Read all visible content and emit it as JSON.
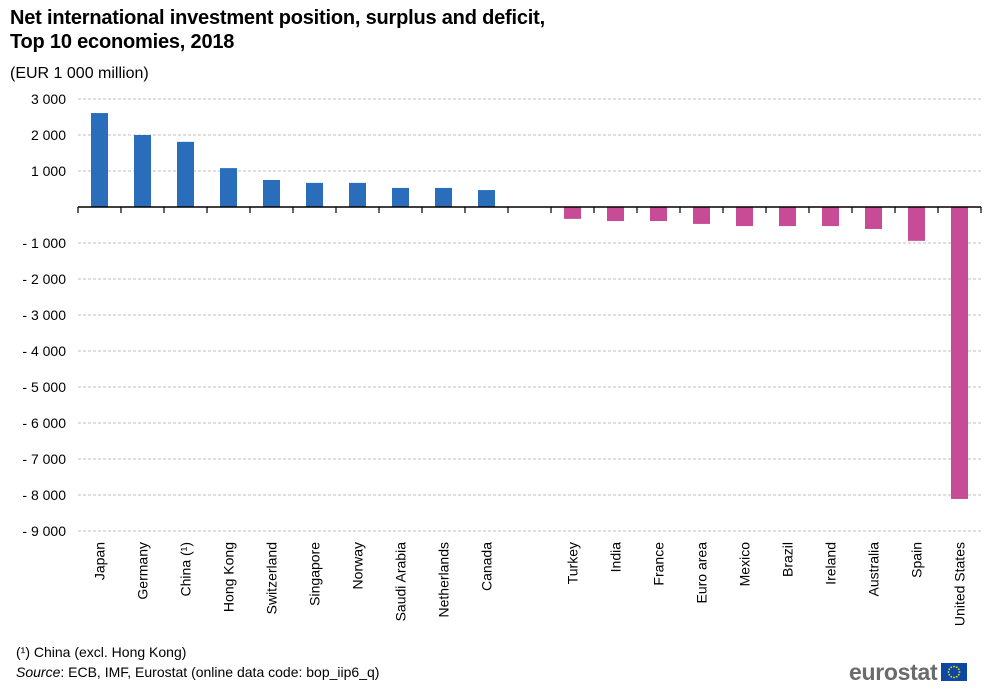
{
  "title_line1": "Net international investment position, surplus and deficit,",
  "title_line2": "Top 10 economies, 2018",
  "subtitle": "(EUR 1 000 million)",
  "footnote": "(¹) China (excl. Hong Kong)",
  "source_label": "Source",
  "source_text": ": ECB, IMF, Eurostat (online data code: bop_iip6_q)",
  "logo_text": "eurostat",
  "colors": {
    "surplus": "#2a6ebb",
    "deficit": "#c84b96",
    "grid": "#bfbfbf",
    "axis": "#000000"
  },
  "chart_data": {
    "type": "bar",
    "title": "Net international investment position, surplus and deficit, Top 10 economies, 2018",
    "subtitle": "(EUR 1 000 million)",
    "xlabel": "",
    "ylabel": "",
    "ylim": [
      -9000,
      3000
    ],
    "yticks": [
      3000,
      2000,
      1000,
      0,
      -1000,
      -2000,
      -3000,
      -4000,
      -5000,
      -6000,
      -7000,
      -8000,
      -9000
    ],
    "ytick_labels": [
      "3 000",
      "2 000",
      "1 000",
      "",
      "- 1 000",
      "- 2 000",
      "- 3 000",
      "- 4 000",
      "- 5 000",
      "- 6 000",
      "- 7 000",
      "- 8 000",
      "- 9 000"
    ],
    "grid": true,
    "legend": "none",
    "categories": [
      "Japan",
      "Germany",
      "China (¹)",
      "Hong Kong",
      "Switzerland",
      "Singapore",
      "Norway",
      "Saudi Arabia",
      "Netherlands",
      "Canada",
      "",
      "Turkey",
      "India",
      "France",
      "Euro area",
      "Mexico",
      "Brazil",
      "Ireland",
      "Australia",
      "Spain",
      "United States"
    ],
    "series": [
      {
        "name": "Surplus",
        "color": "#2a6ebb",
        "values": [
          2610,
          2000,
          1810,
          1080,
          750,
          670,
          670,
          530,
          530,
          470,
          null,
          null,
          null,
          null,
          null,
          null,
          null,
          null,
          null,
          null,
          null
        ]
      },
      {
        "name": "Deficit",
        "color": "#c84b96",
        "values": [
          null,
          null,
          null,
          null,
          null,
          null,
          null,
          null,
          null,
          null,
          null,
          -330,
          -390,
          -390,
          -470,
          -530,
          -530,
          -530,
          -610,
          -940,
          -8110
        ]
      }
    ]
  }
}
